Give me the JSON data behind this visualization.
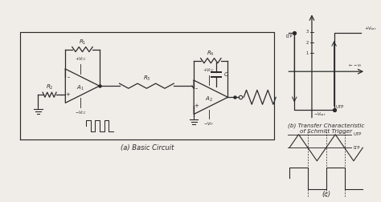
{
  "bg_color": "#f0ede8",
  "line_color": "#2a2a2a",
  "text_color": "#2a2a2a",
  "title_a": "(a) Basic Circuit",
  "title_b": "(b) Transfer Characteristic\nof Schmitt Trigger",
  "title_c": "(c)",
  "UTP": "UTP",
  "LTP": "LTP"
}
